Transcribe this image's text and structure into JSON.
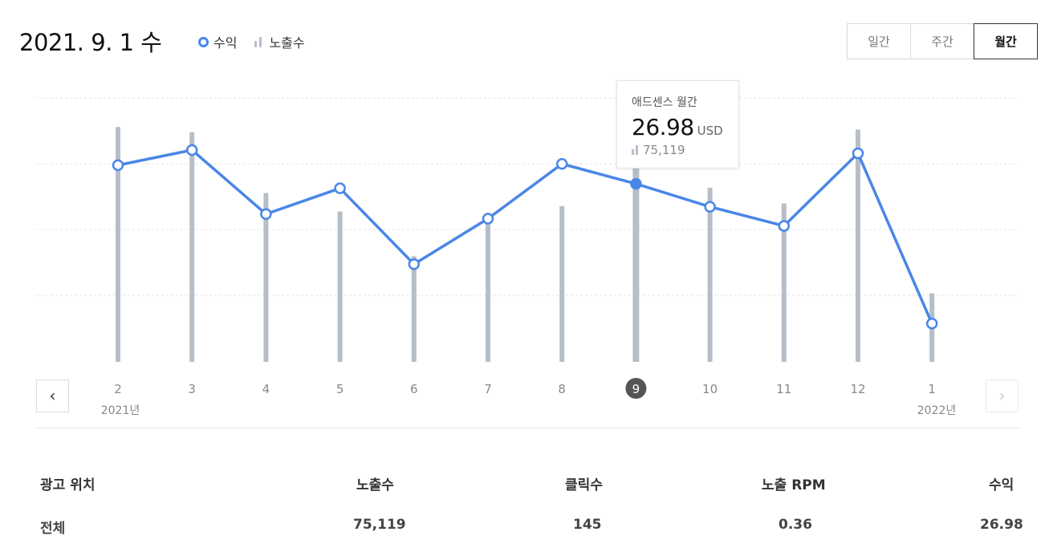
{
  "header": {
    "date": "2021. 9. 1 수",
    "legend": {
      "revenue_label": "수익",
      "impressions_label": "노출수",
      "revenue_color": "#4a86e8",
      "impressions_color": "#b6bec8"
    },
    "tabs": [
      {
        "label": "일간",
        "active": false
      },
      {
        "label": "주간",
        "active": false
      },
      {
        "label": "월간",
        "active": true
      }
    ]
  },
  "tooltip": {
    "title": "애드센스 월간",
    "value": "26.98",
    "unit": "USD",
    "impressions": "75,119"
  },
  "chart_data": {
    "type": "line",
    "categories": [
      "2",
      "3",
      "4",
      "5",
      "6",
      "7",
      "8",
      "9",
      "10",
      "11",
      "12",
      "1"
    ],
    "selected_index": 7,
    "year_start_label": "2021년",
    "year_end_label": "2022년",
    "series": [
      {
        "name": "수익",
        "values": [
          29.8,
          32.1,
          22.4,
          26.3,
          14.8,
          21.7,
          30.0,
          26.98,
          23.5,
          20.6,
          31.6,
          5.8
        ]
      },
      {
        "name": "노출수",
        "values": [
          89000,
          87000,
          64000,
          57000,
          40000,
          54000,
          59000,
          75119,
          66000,
          60000,
          88000,
          26000
        ]
      }
    ],
    "grid": true
  },
  "table": {
    "headers": [
      "광고 위치",
      "노출수",
      "클릭수",
      "노출 RPM",
      "수익"
    ],
    "rows": [
      [
        "전체",
        "75,119",
        "145",
        "0.36",
        "26.98"
      ]
    ]
  }
}
